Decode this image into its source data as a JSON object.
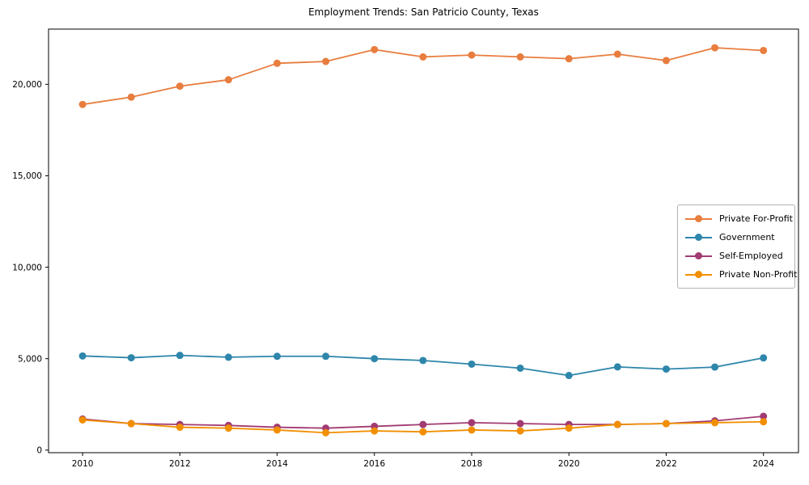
{
  "title": "Employment Trends: San Patricio County, Texas",
  "chart_data": {
    "type": "line",
    "title": "Employment Trends: San Patricio County, Texas",
    "xlabel": "",
    "ylabel": "",
    "x": [
      2010,
      2011,
      2012,
      2013,
      2014,
      2015,
      2016,
      2017,
      2018,
      2019,
      2020,
      2021,
      2022,
      2023,
      2024
    ],
    "series": [
      {
        "name": "Private For-Profit",
        "color": "#E87D3E",
        "values": [
          18900,
          19300,
          19900,
          20250,
          21150,
          21250,
          21900,
          21500,
          21600,
          21500,
          21400,
          21650,
          21300,
          22000,
          21850
        ]
      },
      {
        "name": "Government",
        "color": "#2E86AB",
        "values": [
          5150,
          5050,
          5180,
          5080,
          5130,
          5130,
          5000,
          4900,
          4700,
          4480,
          4080,
          4550,
          4430,
          4540,
          5040
        ]
      },
      {
        "name": "Self-Employed",
        "color": "#A23B72",
        "values": [
          1700,
          1450,
          1400,
          1350,
          1250,
          1200,
          1300,
          1400,
          1500,
          1450,
          1400,
          1400,
          1450,
          1600,
          1850
        ]
      },
      {
        "name": "Private Non-Profit",
        "color": "#F18F01",
        "values": [
          1650,
          1450,
          1250,
          1200,
          1100,
          950,
          1050,
          1000,
          1100,
          1050,
          1200,
          1400,
          1450,
          1500,
          1550
        ]
      }
    ],
    "xticks": [
      2010,
      2012,
      2014,
      2016,
      2018,
      2020,
      2022,
      2024
    ],
    "yticks": [
      0,
      5000,
      10000,
      15000,
      20000
    ],
    "ytick_labels": [
      "0",
      "5,000",
      "10,000",
      "15,000",
      "20,000"
    ],
    "xlim": [
      2009.3,
      2024.72
    ],
    "ylim": [
      -140,
      23020
    ],
    "grid": false,
    "legend_position": "center right",
    "axis_color": "#000000"
  }
}
